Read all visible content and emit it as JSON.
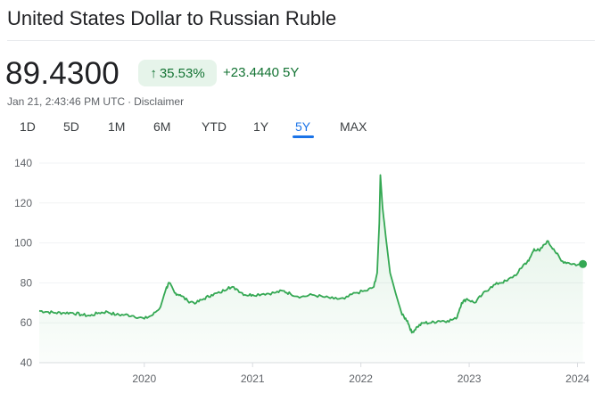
{
  "header": {
    "title": "United States Dollar to Russian Ruble"
  },
  "quote": {
    "price": "89.4300",
    "percent_change": "35.53%",
    "absolute_change": "+23.4440",
    "period": "5Y",
    "timestamp": "Jan 21, 2:43:46 PM UTC",
    "separator": "·",
    "disclaimer": "Disclaimer"
  },
  "ranges": [
    {
      "label": "1D",
      "active": false
    },
    {
      "label": "5D",
      "active": false
    },
    {
      "label": "1M",
      "active": false
    },
    {
      "label": "6M",
      "active": false
    },
    {
      "label": "YTD",
      "active": false
    },
    {
      "label": "1Y",
      "active": false
    },
    {
      "label": "5Y",
      "active": true
    },
    {
      "label": "MAX",
      "active": false
    }
  ],
  "colors": {
    "up": "#137333",
    "line": "#34a853",
    "active_tab": "#1a73e8"
  },
  "icons": {
    "change_direction": "arrow-up-icon"
  },
  "chart_data": {
    "type": "area",
    "title": "",
    "xlabel": "",
    "ylabel": "",
    "ylim": [
      40,
      140
    ],
    "yticks": [
      40,
      60,
      80,
      100,
      120,
      140
    ],
    "xticks": [
      {
        "label": "2020",
        "x": 2020.0
      },
      {
        "label": "2021",
        "x": 2021.0
      },
      {
        "label": "2022",
        "x": 2022.0
      },
      {
        "label": "2023",
        "x": 2023.0
      },
      {
        "label": "2024",
        "x": 2024.0
      }
    ],
    "xlim": [
      2019.03,
      2024.07
    ],
    "grid": true,
    "series": [
      {
        "values": [
          [
            2019.03,
            66
          ],
          [
            2019.1,
            65.5
          ],
          [
            2019.18,
            65
          ],
          [
            2019.26,
            65
          ],
          [
            2019.34,
            65
          ],
          [
            2019.42,
            64
          ],
          [
            2019.5,
            63.5
          ],
          [
            2019.58,
            65
          ],
          [
            2019.66,
            65.5
          ],
          [
            2019.74,
            64
          ],
          [
            2019.82,
            64
          ],
          [
            2019.9,
            63.5
          ],
          [
            2020.0,
            62
          ],
          [
            2020.08,
            64
          ],
          [
            2020.15,
            68
          ],
          [
            2020.2,
            77
          ],
          [
            2020.23,
            80
          ],
          [
            2020.28,
            75
          ],
          [
            2020.33,
            74
          ],
          [
            2020.4,
            71
          ],
          [
            2020.48,
            70
          ],
          [
            2020.55,
            72
          ],
          [
            2020.62,
            74
          ],
          [
            2020.7,
            75
          ],
          [
            2020.78,
            78
          ],
          [
            2020.85,
            77
          ],
          [
            2020.93,
            74
          ],
          [
            2021.0,
            74
          ],
          [
            2021.1,
            74.5
          ],
          [
            2021.2,
            75
          ],
          [
            2021.28,
            76
          ],
          [
            2021.35,
            74.5
          ],
          [
            2021.45,
            73
          ],
          [
            2021.55,
            74
          ],
          [
            2021.65,
            73
          ],
          [
            2021.75,
            72
          ],
          [
            2021.85,
            72
          ],
          [
            2021.95,
            75
          ],
          [
            2022.05,
            76
          ],
          [
            2022.12,
            78
          ],
          [
            2022.15,
            85
          ],
          [
            2022.17,
            110
          ],
          [
            2022.18,
            134
          ],
          [
            2022.2,
            118
          ],
          [
            2022.23,
            103
          ],
          [
            2022.27,
            85
          ],
          [
            2022.32,
            75
          ],
          [
            2022.38,
            64
          ],
          [
            2022.43,
            61
          ],
          [
            2022.47,
            55
          ],
          [
            2022.52,
            58
          ],
          [
            2022.58,
            60
          ],
          [
            2022.65,
            60
          ],
          [
            2022.72,
            61
          ],
          [
            2022.8,
            61
          ],
          [
            2022.88,
            62
          ],
          [
            2022.93,
            70
          ],
          [
            2022.98,
            72
          ],
          [
            2023.05,
            70
          ],
          [
            2023.12,
            74
          ],
          [
            2023.2,
            78
          ],
          [
            2023.28,
            80
          ],
          [
            2023.35,
            81
          ],
          [
            2023.45,
            85
          ],
          [
            2023.5,
            89
          ],
          [
            2023.55,
            91
          ],
          [
            2023.6,
            97
          ],
          [
            2023.65,
            96
          ],
          [
            2023.72,
            101
          ],
          [
            2023.78,
            97
          ],
          [
            2023.85,
            91
          ],
          [
            2023.92,
            90
          ],
          [
            2024.0,
            89
          ],
          [
            2024.05,
            89.43
          ]
        ]
      }
    ]
  }
}
